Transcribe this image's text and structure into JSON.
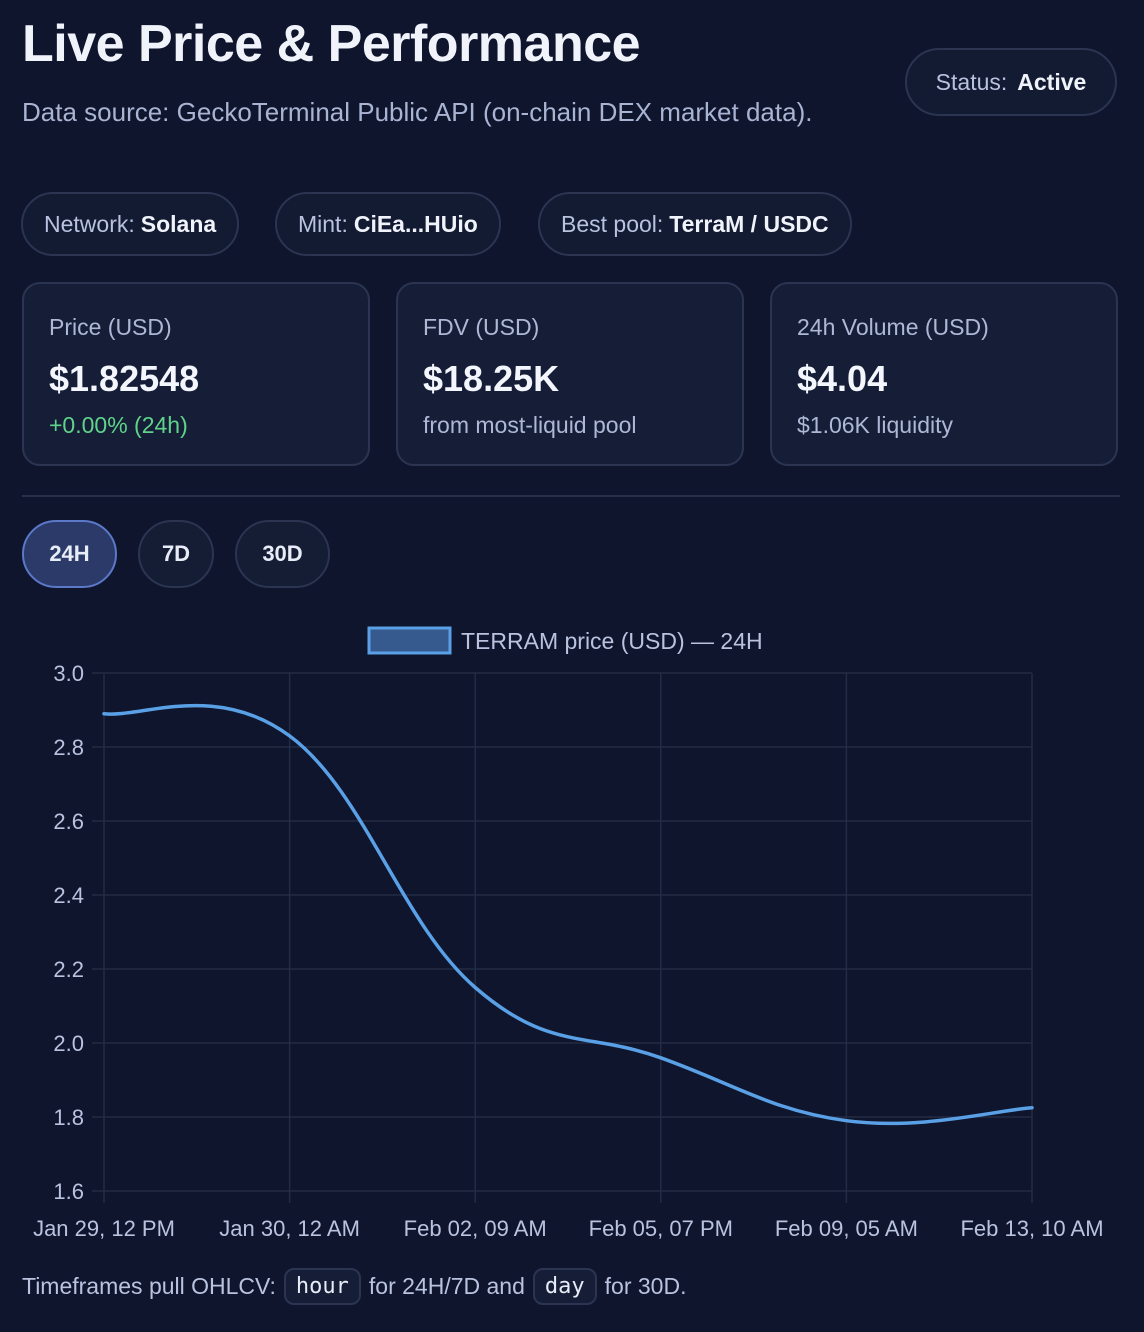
{
  "header": {
    "title": "Live Price & Performance",
    "subtitle": "Data source: GeckoTerminal Public API (on-chain DEX market data).",
    "status_label": "Status:",
    "status_value": "Active"
  },
  "chips": [
    {
      "label": "Network:",
      "value": "Solana"
    },
    {
      "label": "Mint:",
      "value": "CiEa...HUio"
    },
    {
      "label": "Best pool:",
      "value": "TerraM / USDC"
    }
  ],
  "cards": [
    {
      "label": "Price (USD)",
      "value": "$1.82548",
      "sub": "+0.00% (24h)"
    },
    {
      "label": "FDV (USD)",
      "value": "$18.25K",
      "sub": "from most-liquid pool"
    },
    {
      "label": "24h Volume (USD)",
      "value": "$4.04",
      "sub": "$1.06K liquidity"
    }
  ],
  "timeframes": [
    {
      "label": "24H",
      "active": true
    },
    {
      "label": "7D",
      "active": false
    },
    {
      "label": "30D",
      "active": false
    }
  ],
  "footer": {
    "prefix": "Timeframes pull OHLCV:",
    "code1": "hour",
    "middle": "for 24H/7D and",
    "code2": "day",
    "suffix": "for 30D."
  },
  "colors": {
    "line": "#5aa0e6",
    "legend_fill": "#36598e",
    "grid": "#232c45",
    "axis_text": "#b9c3df",
    "positive": "#5fd38a"
  },
  "chart_data": {
    "type": "line",
    "title": "",
    "legend": "TERRAM price (USD) — 24H",
    "legend_position": "top-center",
    "x": [
      "Jan 29, 12 PM",
      "Jan 30, 12 AM",
      "Feb 02, 09 AM",
      "Feb 05, 07 PM",
      "Feb 09, 05 AM",
      "Feb 13, 10 AM"
    ],
    "series": [
      {
        "name": "TERRAM price (USD) — 24H",
        "values": [
          2.89,
          2.83,
          2.15,
          1.96,
          1.79,
          1.825
        ]
      }
    ],
    "ylim": [
      1.6,
      3.0
    ],
    "yticks": [
      "1.6",
      "1.8",
      "2.0",
      "2.2",
      "2.4",
      "2.6",
      "2.8",
      "3.0"
    ],
    "grid": true
  }
}
